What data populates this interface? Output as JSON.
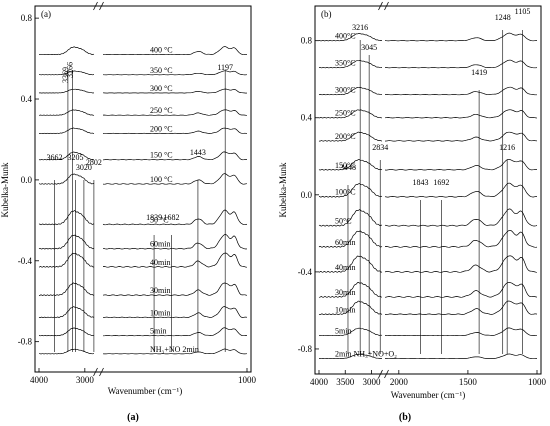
{
  "figure": {
    "panels": [
      {
        "type": "line",
        "panel_tag": "(a)",
        "caption": "(a)",
        "xlabel": "Wavenumber (cm⁻¹)",
        "ylabel": "Kubelka-Munk",
        "x_segments": [
          {
            "range": [
              4000,
              2800
            ],
            "ticks": [
              {
                "value": 4000,
                "label": "4000"
              },
              {
                "value": 3000,
                "label": "3000"
              }
            ]
          },
          {
            "range": [
              2300,
              1000
            ],
            "ticks": [
              {
                "value": 1000,
                "label": "1000"
              }
            ]
          }
        ],
        "ylim": [
          -0.95,
          0.86
        ],
        "yticks": [
          {
            "value": 0.8,
            "label": "0.8"
          },
          {
            "value": 0.4,
            "label": "0.4"
          },
          {
            "value": 0.0,
            "label": "0.0"
          },
          {
            "value": -0.4,
            "label": "-0.4"
          },
          {
            "value": -0.8,
            "label": "-0.8"
          }
        ],
        "traces": [
          {
            "label": "400 °C",
            "offset": 0.62,
            "amp": 0.1
          },
          {
            "label": "350 °C",
            "offset": 0.52,
            "amp": 0.05
          },
          {
            "label": "300 °C",
            "offset": 0.43,
            "amp": 0.05
          },
          {
            "label": "250 °C",
            "offset": 0.32,
            "amp": 0.07
          },
          {
            "label": "200 °C",
            "offset": 0.23,
            "amp": 0.07
          },
          {
            "label": "150 °C",
            "offset": 0.1,
            "amp": 0.1
          },
          {
            "label": "100 °C",
            "offset": -0.02,
            "amp": 0.13
          },
          {
            "label": "50 °C",
            "offset": -0.22,
            "amp": 0.18
          },
          {
            "label": "60min",
            "offset": -0.34,
            "amp": 0.18
          },
          {
            "label": "40min",
            "offset": -0.43,
            "amp": 0.18
          },
          {
            "label": "30min",
            "offset": -0.57,
            "amp": 0.16
          },
          {
            "label": "10min",
            "offset": -0.68,
            "amp": 0.14
          },
          {
            "label": "5min",
            "offset": -0.77,
            "amp": 0.1
          },
          {
            "label": "NH₃+NO  2min",
            "offset": -0.86,
            "amp": 0.06
          }
        ],
        "annotations": [
          {
            "text": "3369",
            "x": 3369
          },
          {
            "text": "3266",
            "x": 3266
          },
          {
            "text": "1197",
            "x": 1197
          },
          {
            "text": "3662",
            "x": 3662
          },
          {
            "text": "3205",
            "x": 3205
          },
          {
            "text": "3020",
            "x": 3020
          },
          {
            "text": "2802",
            "x": 2802
          },
          {
            "text": "1443",
            "x": 1443
          },
          {
            "text": "1839",
            "x": 1839
          },
          {
            "text": "1682",
            "x": 1682
          }
        ]
      },
      {
        "type": "line",
        "panel_tag": "(b)",
        "caption": "(b)",
        "xlabel": "Wavenumber (cm⁻¹)",
        "ylabel": "Kubelka-Munk",
        "x_segments": [
          {
            "range": [
              4000,
              2800
            ],
            "ticks": [
              {
                "value": 4000,
                "label": "4000"
              },
              {
                "value": 3500,
                "label": "3500"
              },
              {
                "value": 3000,
                "label": "3000"
              }
            ]
          },
          {
            "range": [
              2100,
              1000
            ],
            "ticks": [
              {
                "value": 2000,
                "label": "2000"
              },
              {
                "value": 1500,
                "label": "1500"
              },
              {
                "value": 1000,
                "label": "1000"
              }
            ]
          }
        ],
        "ylim": [
          -0.93,
          0.98
        ],
        "yticks": [
          {
            "value": 0.8,
            "label": "0.8"
          },
          {
            "value": 0.4,
            "label": "0.4"
          },
          {
            "value": 0.0,
            "label": "0.0"
          },
          {
            "value": -0.4,
            "label": "-0.4"
          },
          {
            "value": -0.8,
            "label": "-0.8"
          }
        ],
        "traces": [
          {
            "label": "400°C",
            "offset": 0.8,
            "amp": 0.1
          },
          {
            "label": "350°C",
            "offset": 0.66,
            "amp": 0.1
          },
          {
            "label": "300°C",
            "offset": 0.52,
            "amp": 0.1
          },
          {
            "label": "250°C",
            "offset": 0.4,
            "amp": 0.11
          },
          {
            "label": "200°C",
            "offset": 0.28,
            "amp": 0.12
          },
          {
            "label": "150°C",
            "offset": 0.13,
            "amp": 0.14
          },
          {
            "label": "100°C",
            "offset": -0.01,
            "amp": 0.18
          },
          {
            "label": "50°C",
            "offset": -0.16,
            "amp": 0.22
          },
          {
            "label": "60min",
            "offset": -0.27,
            "amp": 0.22
          },
          {
            "label": "40min",
            "offset": -0.4,
            "amp": 0.22
          },
          {
            "label": "30min",
            "offset": -0.53,
            "amp": 0.2
          },
          {
            "label": "10min",
            "offset": -0.62,
            "amp": 0.18
          },
          {
            "label": "5min",
            "offset": -0.73,
            "amp": 0.1
          },
          {
            "label": "2min NH₃+NO+O₂",
            "offset": -0.85,
            "amp": 0.06
          }
        ],
        "annotations": [
          {
            "text": "3216",
            "x": 3216
          },
          {
            "text": "3045",
            "x": 3045
          },
          {
            "text": "1248",
            "x": 1248
          },
          {
            "text": "1105",
            "x": 1105
          },
          {
            "text": "1419",
            "x": 1419
          },
          {
            "text": "2834",
            "x": 2834
          },
          {
            "text": "3448",
            "x": 3448
          },
          {
            "text": "1216",
            "x": 1216
          },
          {
            "text": "1843",
            "x": 1843
          },
          {
            "text": "1692",
            "x": 1692
          }
        ]
      }
    ]
  }
}
